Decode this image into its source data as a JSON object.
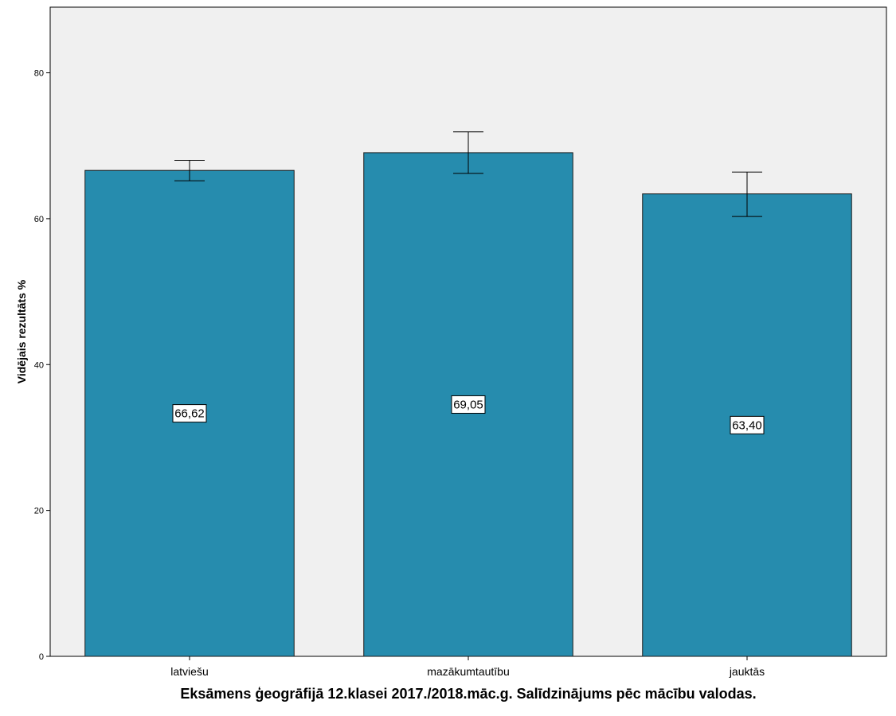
{
  "chart_data": {
    "type": "bar",
    "categories": [
      "latviešu",
      "mazākumtautību",
      "jauktās"
    ],
    "values": [
      66.62,
      69.05,
      63.4
    ],
    "data_labels": [
      "66,62",
      "69,05",
      "63,40"
    ],
    "error_bars": [
      {
        "low": 65.2,
        "high": 68.0
      },
      {
        "low": 66.2,
        "high": 71.9
      },
      {
        "low": 60.3,
        "high": 66.4
      }
    ],
    "xlabel": "Eksāmens ģeogrāfijā 12.klasei 2017./2018.māc.g. Salīdzinājums pēc mācību valodas.",
    "ylabel": "Vidējais rezultāts %",
    "ylim": [
      0,
      89
    ],
    "yticks": [
      0,
      20,
      40,
      60,
      80
    ],
    "grid": false,
    "colors": {
      "bar": "#268cae",
      "bar_edge": "#1a1a1a",
      "plot_background": "#f0f0f0",
      "error_bar": "#000000"
    }
  }
}
